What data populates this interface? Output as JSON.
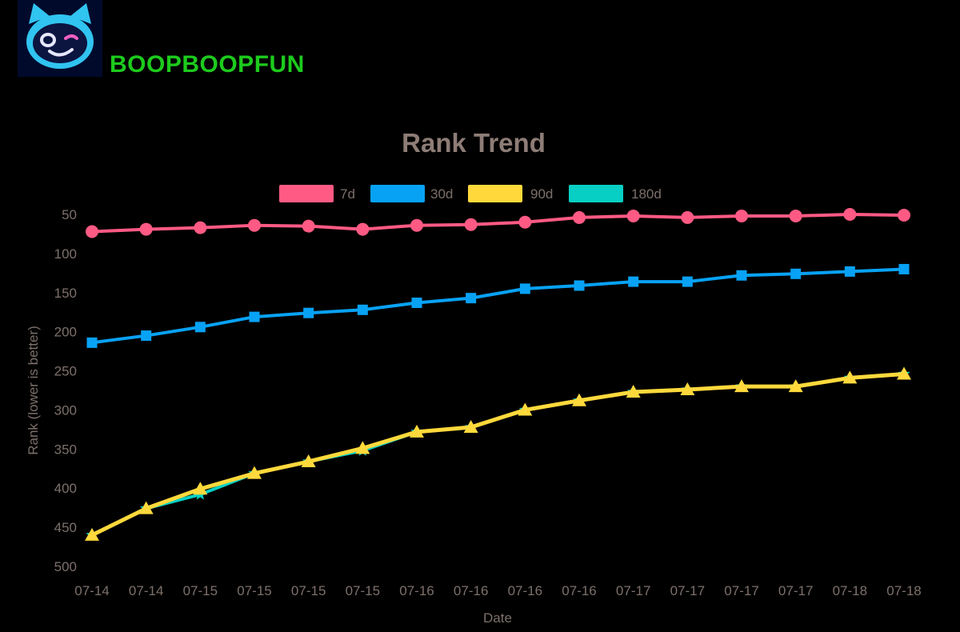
{
  "brand": {
    "name": "BOOPBOOPFUN",
    "color": "#1dcb1d",
    "logo_icon": "cat-mascot-icon"
  },
  "colors": {
    "text_muted": "#7d706b",
    "title": "#8d7d76"
  },
  "chart_data": {
    "type": "line",
    "title": "Rank Trend",
    "xlabel": "Date",
    "ylabel": "Rank (lower is better)",
    "y_reversed": true,
    "ylim": [
      40,
      500
    ],
    "yticks": [
      50,
      100,
      150,
      200,
      250,
      300,
      350,
      400,
      450,
      500
    ],
    "grid": false,
    "legend_position": "top-center",
    "categories": [
      "07-14",
      "07-14",
      "07-15",
      "07-15",
      "07-15",
      "07-15",
      "07-16",
      "07-16",
      "07-16",
      "07-16",
      "07-17",
      "07-17",
      "07-17",
      "07-17",
      "07-18",
      "07-18"
    ],
    "series": [
      {
        "name": "7d",
        "color": "#ff5a84",
        "marker": "circle",
        "values": [
          72,
          69,
          67,
          64,
          65,
          69,
          64,
          63,
          60,
          54,
          52,
          54,
          52,
          52,
          50,
          51
        ]
      },
      {
        "name": "30d",
        "color": "#08a2f5",
        "marker": "square",
        "values": [
          214,
          205,
          194,
          181,
          176,
          172,
          163,
          157,
          145,
          141,
          136,
          136,
          128,
          126,
          123,
          120
        ]
      },
      {
        "name": "90d",
        "color": "#ffd93c",
        "marker": "triangle",
        "values": [
          460,
          426,
          401,
          381,
          366,
          349,
          328,
          322,
          300,
          288,
          277,
          274,
          270,
          270,
          259,
          254
        ]
      },
      {
        "name": "180d",
        "color": "#07cfc3",
        "marker": "star",
        "values": [
          460,
          426,
          408,
          381,
          366,
          352,
          328,
          322,
          300,
          288,
          277,
          274,
          270,
          270,
          259,
          254
        ]
      }
    ]
  }
}
